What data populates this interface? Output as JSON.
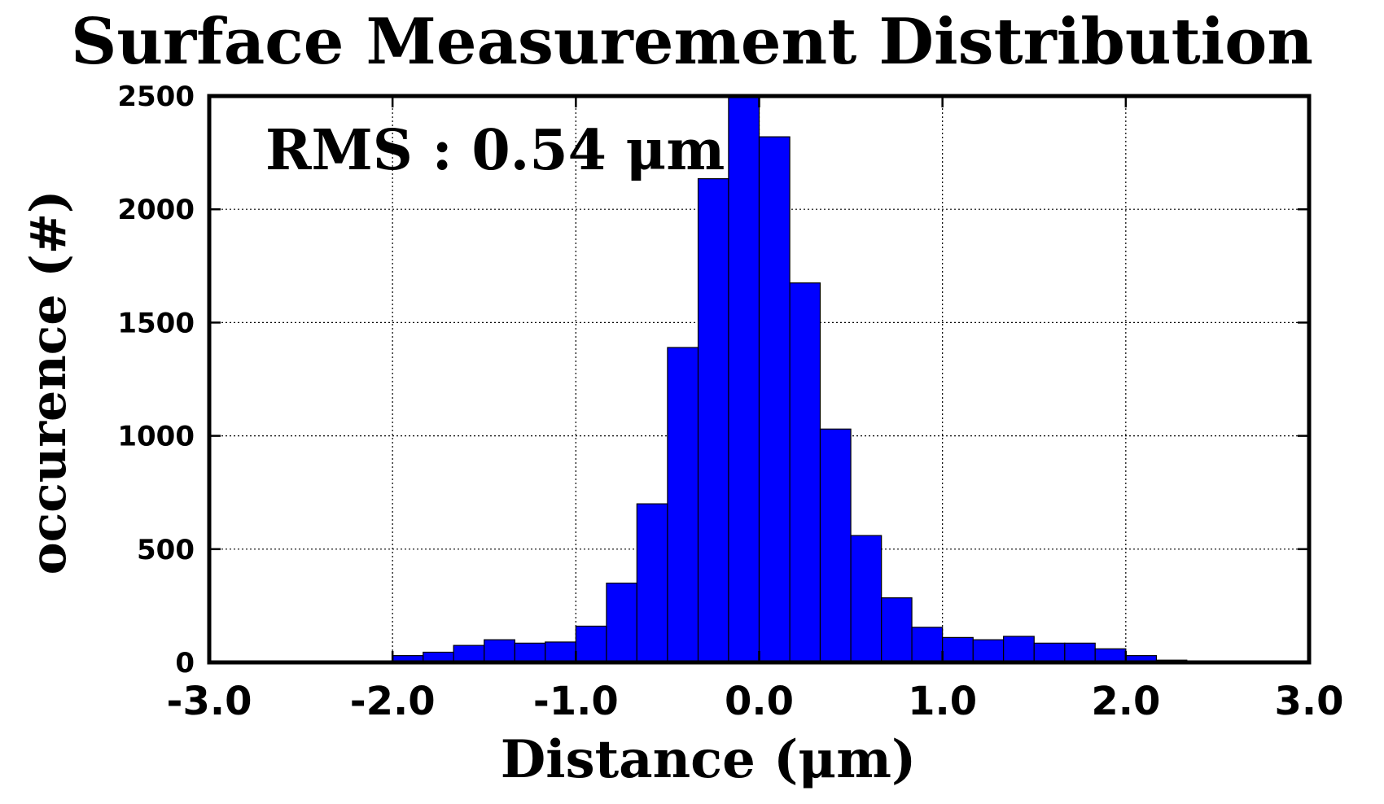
{
  "chart_data": {
    "type": "bar",
    "title": "Surface Measurement Distribution",
    "xlabel": "Distance (μm)",
    "ylabel": "occurence (#)",
    "annotation": "RMS : 0.54 μm",
    "xlim": [
      -3.0,
      3.0
    ],
    "ylim": [
      0,
      2500
    ],
    "x_ticks": [
      "-3.0",
      "-2.0",
      "-1.0",
      "0.0",
      "1.0",
      "2.0",
      "3.0"
    ],
    "y_ticks": [
      "0",
      "500",
      "1000",
      "1500",
      "2000",
      "2500"
    ],
    "grid": true,
    "bar_color": "#0000ff",
    "bin_edges": [
      -2.0,
      -1.833,
      -1.667,
      -1.5,
      -1.333,
      -1.167,
      -1.0,
      -0.833,
      -0.667,
      -0.5,
      -0.333,
      -0.167,
      0.0,
      0.167,
      0.333,
      0.5,
      0.667,
      0.833,
      1.0,
      1.167,
      1.333,
      1.5,
      1.667,
      1.833,
      2.0,
      2.167,
      2.333
    ],
    "values": [
      30,
      45,
      75,
      100,
      85,
      90,
      160,
      350,
      700,
      1390,
      2135,
      2500,
      2320,
      1675,
      1030,
      560,
      285,
      155,
      110,
      100,
      115,
      85,
      85,
      60,
      30,
      10
    ]
  }
}
